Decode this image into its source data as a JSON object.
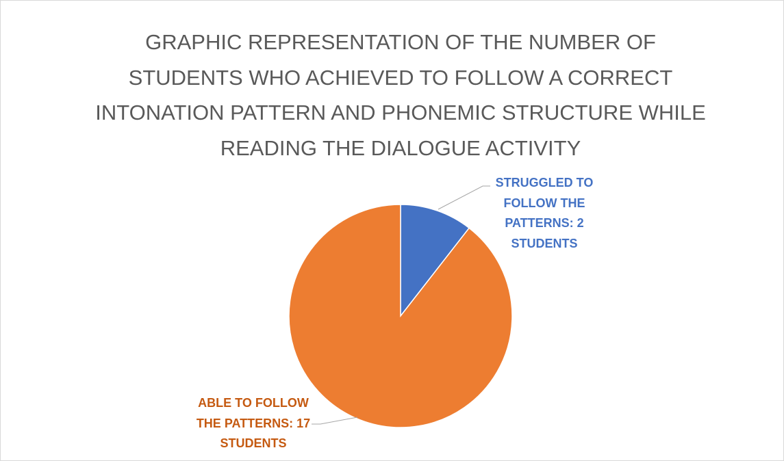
{
  "chart_data": {
    "type": "pie",
    "title": "GRAPHIC REPRESENTATION OF THE NUMBER OF STUDENTS WHO ACHIEVED TO FOLLOW A CORRECT INTONATION PATTERN AND PHONEMIC STRUCTURE WHILE READING THE DIALOGUE ACTIVITY",
    "values": [
      2,
      17
    ],
    "value_labels": [
      "STRUGGLED TO FOLLOW THE PATTERNS: 2 STUDENTS",
      "ABLE TO FOLLOW THE PATTERNS: 17 STUDENTS"
    ],
    "colors": [
      "#4472c4",
      "#ed7d31"
    ],
    "label_colors": [
      "#4472c4",
      "#c55a11"
    ]
  }
}
